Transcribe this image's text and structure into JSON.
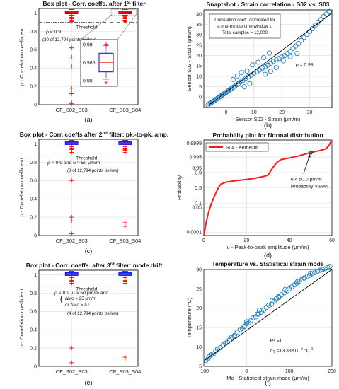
{
  "figure": {
    "panels": [
      {
        "id": "a",
        "caption": "(a)"
      },
      {
        "id": "b",
        "caption": "(b)"
      },
      {
        "id": "c",
        "caption": "(c)"
      },
      {
        "id": "d",
        "caption": "(d)"
      },
      {
        "id": "e",
        "caption": "(e)"
      },
      {
        "id": "f",
        "caption": "(f)"
      }
    ]
  },
  "chart_data": [
    {
      "id": "a",
      "type": "box",
      "title": "Box plot - Corr. coeffs. after 1",
      "title_sup": "st",
      "title_tail": " filter",
      "ylabel": "ρ - Correlation coefficient",
      "categories": [
        "CF_S02_S03",
        "CF_S03_S04"
      ],
      "ylim": [
        0,
        1.05
      ],
      "yticks": [
        "0",
        "0.2",
        "0.4",
        "0.6",
        "0.8",
        "1"
      ],
      "threshold": 0.9,
      "threshold_label": "Threshold",
      "annotations": [
        "ρ < 0.9",
        "(20 of 12,794 points bellow)"
      ],
      "outliers": [
        [
          0.62,
          0.52,
          0.42,
          0.18,
          0.12,
          0.02,
          0.01
        ],
        [
          0.92,
          0.94,
          0.96
        ]
      ],
      "inset": {
        "yticks": [
          "0.99",
          "0.985",
          "0.98"
        ],
        "median": 0.9852,
        "q1": 0.9825,
        "q3": 0.9877,
        "whisker_low": 0.9805,
        "whisker_high": 0.9899,
        "outlier_low": 0.9795,
        "outlier_high": 0.9902
      },
      "grid": true
    },
    {
      "id": "b",
      "type": "scatter",
      "title": "Snaptshot - Strain correlation - S02 vs. S03",
      "xlabel": "Sensor S02 - Strain (μm/m)",
      "ylabel": "Sensor S03 - Strain (μm/m)",
      "xlim": [
        -8,
        38
      ],
      "ylim": [
        -5,
        42
      ],
      "xticks": [
        "0",
        "10",
        "20",
        "30"
      ],
      "yticks": [
        "0",
        "5",
        "10",
        "15",
        "20",
        "25",
        "30",
        "35",
        "40"
      ],
      "annotation_lines": [
        "Correlation coeff. calculated for",
        "a one-minute time window τ,",
        "Total samples = 12,000"
      ],
      "rho_label": "ρ = 0.98",
      "x": [
        -6.5,
        -6,
        -5.5,
        -5,
        -4.6,
        -4.2,
        -3.8,
        -3.4,
        -3.0,
        -2.6,
        -2.2,
        -1.8,
        -1.4,
        -1.0,
        -0.6,
        -0.2,
        0.2,
        0.6,
        1.0,
        1.5,
        2.0,
        2.6,
        3.2,
        3.8,
        4.5,
        5.2,
        6,
        7,
        8,
        9,
        10,
        11,
        12,
        13,
        14,
        15,
        16,
        17,
        18,
        19,
        20,
        21,
        22,
        23,
        24,
        25,
        26,
        27,
        28,
        29,
        30,
        31,
        32,
        33,
        34,
        35,
        36,
        37,
        2.5,
        4,
        5.5,
        7.5,
        9.5,
        11.5,
        13.5,
        15.5,
        6.5,
        8.5,
        14,
        16,
        18,
        20.5,
        23,
        25.5
      ],
      "y": [
        -3.8,
        -3.2,
        -2.9,
        -2.4,
        -2.0,
        -1.7,
        -1.2,
        -1.0,
        -0.5,
        -0.2,
        0.3,
        0.6,
        1.0,
        1.4,
        1.7,
        2.1,
        2.4,
        2.9,
        3.2,
        3.7,
        4.2,
        4.8,
        5.3,
        6.0,
        6.6,
        7.3,
        8.0,
        9.0,
        9.8,
        10.6,
        11.5,
        12.3,
        13.0,
        13.9,
        14.6,
        15.4,
        16.3,
        17.2,
        17.9,
        18.6,
        19.3,
        20.0,
        21.0,
        22.0,
        23.4,
        24.6,
        25.8,
        27.3,
        28.8,
        30.2,
        31.5,
        33.0,
        34.6,
        36.1,
        37.4,
        38.8,
        40.0,
        41.2,
        8.5,
        10.2,
        11.8,
        12.6,
        15.5,
        16.8,
        19.0,
        21.2,
        5.0,
        6.5,
        11.0,
        12.5,
        14.2,
        17.5,
        19.5,
        21.0
      ],
      "fit_line": [
        [
          -6,
          -3.6
        ],
        [
          38,
          40.5
        ]
      ],
      "grid": true
    },
    {
      "id": "c",
      "type": "box",
      "title": "Box plot - Corr. coeffs after 2",
      "title_sup": "nd",
      "title_tail": " filter: pk.-to-pk. amp.",
      "ylabel": "ρ - Correlation coefficient",
      "categories": [
        "CF_S02_S03",
        "CF_S03_S04"
      ],
      "ylim": [
        0,
        1.05
      ],
      "yticks": [
        "0",
        "0.2",
        "0.4",
        "0.6",
        "0.8",
        "1"
      ],
      "threshold": 0.9,
      "threshold_label": "Threshold",
      "annotations": [
        "ρ < 0.9  and  u > 50 μm/m",
        "(8 of 12,794 points bellow)"
      ],
      "outliers": [
        [
          0.6,
          0.2,
          0.16,
          0.02
        ],
        [
          0.93,
          0.95,
          0.14,
          0.1
        ]
      ],
      "grid": true
    },
    {
      "id": "d",
      "type": "line",
      "title": "Probability plot for Normal distribution",
      "xlabel": "u - Peak-to-peak amplitude (μm/m)",
      "ylabel": "Probability",
      "xlim": [
        0,
        60
      ],
      "xticks": [
        "0",
        "20",
        "40",
        "60"
      ],
      "yticks": [
        "0.0001",
        "0.05",
        "0.1",
        "0.5",
        "0.9",
        "0.95",
        "0.995",
        "0.9999"
      ],
      "series": [
        {
          "name": "S04 - Kernel fit",
          "color": "#ff1a1a"
        }
      ],
      "annotation_lines": [
        "u < 50.0 μm/m",
        "Probability > 99%"
      ],
      "marker_x": 50.0,
      "grid": true
    },
    {
      "id": "e",
      "type": "box",
      "title": "Box plot - Corr. coeffs. after 3",
      "title_sup": "rd",
      "title_tail": " filter: mode drift",
      "ylabel": "ρ - Correlation coefficient",
      "categories": [
        "CF_S02_S03",
        "CF_S03_S04"
      ],
      "ylim": [
        0,
        1.05
      ],
      "yticks": [
        "0",
        "0.2",
        "0.4",
        "0.6",
        "0.8",
        "1"
      ],
      "threshold": 0.9,
      "threshold_label": "Threshold",
      "annotations": [
        "ρ < 0.9,  u > 50 μm/m and",
        "ΔMo > 25 μm/m",
        "or ΔMo > ΔT",
        "(4 of 12,794 points bellow)"
      ],
      "outliers": [
        [
          0.2,
          0.04
        ],
        [
          0.1,
          0.08
        ]
      ],
      "grid": true
    },
    {
      "id": "f",
      "type": "scatter",
      "title": "Temperature vs. Statistical strain mode",
      "xlabel": "Mo - Statistical strain mode (μm/m)",
      "ylabel": "Temperature (°C)",
      "xlim": [
        -100,
        200
      ],
      "ylim": [
        5,
        30
      ],
      "xticks": [
        "-100",
        "0",
        "100",
        "200"
      ],
      "yticks": [
        "5",
        "10",
        "15",
        "20",
        "25",
        "30"
      ],
      "annotation_lines": [
        "R² =1",
        "α  =13.33×10   °C"
      ],
      "alpha_sub": "T",
      "alpha_sup": "-6",
      "alpha_sup2": "-1",
      "x": [
        -95,
        -90,
        -88,
        -82,
        -78,
        -72,
        -68,
        -62,
        -55,
        -50,
        -45,
        -40,
        -35,
        -28,
        -22,
        -15,
        -10,
        -5,
        0,
        5,
        10,
        15,
        22,
        28,
        35,
        40,
        46,
        52,
        58,
        65,
        70,
        76,
        82,
        88,
        95,
        100,
        106,
        112,
        118,
        124,
        130,
        136,
        142,
        148,
        154,
        160,
        166,
        172,
        178,
        184,
        190,
        195,
        -30,
        0,
        30,
        60,
        90,
        120,
        150,
        25,
        75,
        135
      ],
      "y": [
        6.5,
        7.0,
        7.5,
        8.0,
        8.2,
        9.0,
        9.5,
        9.8,
        10.5,
        11.0,
        11.2,
        11.8,
        12.5,
        13.0,
        13.8,
        14.5,
        14.8,
        15.3,
        16.0,
        16.2,
        16.8,
        17.5,
        17.8,
        18.5,
        19.0,
        19.5,
        20.2,
        20.8,
        21.0,
        21.8,
        22.5,
        22.8,
        23.5,
        24.0,
        24.5,
        25.0,
        25.5,
        26.0,
        26.5,
        27.0,
        27.5,
        27.8,
        28.2,
        28.5,
        28.9,
        29.2,
        29.5,
        29.8,
        30.0,
        30.2,
        30.5,
        30.8,
        12.8,
        16.5,
        19.5,
        22.0,
        24.8,
        27.0,
        29.0,
        18.5,
        23.0,
        27.8
      ],
      "fit_line": [
        [
          -100,
          6.4
        ],
        [
          200,
          30.6
        ]
      ],
      "grid": true
    }
  ],
  "colors": {
    "red": "#ff0000",
    "blue": "#1f7fbf",
    "box_blue": "#0000ff",
    "threshold": "#555555",
    "grid": "#dcdcdc"
  }
}
